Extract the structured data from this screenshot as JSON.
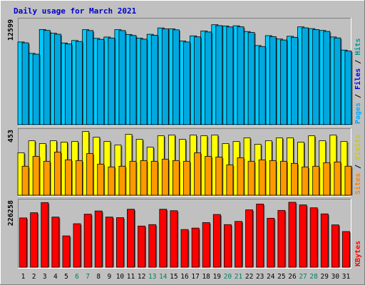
{
  "chart_data": {
    "type": "bar",
    "title": "Daily usage for March 2021",
    "categories": [
      "1",
      "2",
      "3",
      "4",
      "5",
      "6",
      "7",
      "8",
      "9",
      "10",
      "11",
      "12",
      "13",
      "14",
      "15",
      "16",
      "17",
      "18",
      "19",
      "20",
      "21",
      "22",
      "23",
      "24",
      "25",
      "26",
      "27",
      "28",
      "29",
      "30",
      "31"
    ],
    "weekend_days": [
      "6",
      "7",
      "13",
      "14",
      "20",
      "21",
      "27",
      "28"
    ],
    "colors": {
      "title": "#0000cc",
      "page_bg": "#c0c0c0",
      "plot_bg": "#c0c0c0",
      "hits": "#00ccff",
      "files": "#00a8e0",
      "pages": "#33aaff",
      "visits": "#ffff00",
      "sites": "#ff9900",
      "kbytes": "#ff0000",
      "hits_label": "#009999",
      "files_label": "#0000ff",
      "pages_label": "#00aaff",
      "visits_label": "#cccc00",
      "sites_label": "#ff8000",
      "kbytes_label": "#ff0000",
      "weekday_text": "#000000",
      "weekend_text": "#008060"
    },
    "panels": [
      {
        "id": "hits-files-pages",
        "ymax_label": "12599",
        "ylim": [
          0,
          12599
        ],
        "right_labels": [
          {
            "text": "Pages",
            "color_key": "pages_label"
          },
          {
            "text": "Files",
            "color_key": "files_label"
          },
          {
            "text": "Hits",
            "color_key": "hits_label"
          }
        ],
        "series": [
          {
            "name": "Hits",
            "color_key": "hits",
            "values": [
              10020,
              8640,
              11530,
              11080,
              9900,
              10200,
              11510,
              10460,
              10620,
              11510,
              10930,
              10480,
              10950,
              11720,
              11610,
              10140,
              10760,
              11350,
              12110,
              11960,
              11980,
              11290,
              9590,
              10790,
              10380,
              10710,
              11850,
              11640,
              11420,
              10630,
              9040
            ]
          },
          {
            "name": "Files",
            "color_key": "files",
            "values": [
              9920,
              8540,
              11420,
              10960,
              9780,
              10080,
              11400,
              10340,
              10500,
              11400,
              10810,
              10360,
              10830,
              11600,
              11490,
              10020,
              10640,
              11230,
              12000,
              11840,
              11860,
              11170,
              9470,
              10670,
              10260,
              10590,
              11730,
              11520,
              11300,
              10510,
              8920
            ]
          }
        ]
      },
      {
        "id": "visits-sites",
        "ymax_label": "453",
        "ylim": [
          0,
          453
        ],
        "right_labels": [
          {
            "text": "Sites",
            "color_key": "sites_label"
          },
          {
            "text": "Visits",
            "color_key": "visits_label"
          }
        ],
        "series": [
          {
            "name": "Visits",
            "color_key": "visits",
            "values": [
              300,
              385,
              365,
              385,
              375,
              380,
              450,
              410,
              380,
              355,
              430,
              395,
              340,
              420,
              425,
              395,
              425,
              420,
              425,
              365,
              380,
              405,
              360,
              385,
              405,
              405,
              375,
              420,
              385,
              425,
              380
            ]
          },
          {
            "name": "Sites",
            "color_key": "sites",
            "values": [
              205,
              275,
              240,
              305,
              250,
              245,
              295,
              220,
              200,
              205,
              240,
              245,
              240,
              255,
              245,
              240,
              300,
              275,
              270,
              215,
              265,
              240,
              250,
              245,
              240,
              225,
              200,
              205,
              230,
              235,
              205
            ]
          }
        ]
      },
      {
        "id": "kbytes",
        "ymax_label": "226258",
        "ylim": [
          0,
          226258
        ],
        "right_labels": [
          {
            "text": "KBytes",
            "color_key": "kbytes_label"
          }
        ],
        "series": [
          {
            "name": "KBytes",
            "color_key": "kbytes",
            "values": [
              170000,
              188000,
              223000,
              173000,
              108000,
              150000,
              183000,
              194000,
              173000,
              171000,
              200000,
              142000,
              147000,
              200000,
              195000,
              130000,
              135000,
              154000,
              182000,
              147000,
              158000,
              198000,
              218000,
              169000,
              196000,
              224000,
              215000,
              205000,
              184000,
              146000,
              123000
            ]
          }
        ]
      }
    ]
  }
}
